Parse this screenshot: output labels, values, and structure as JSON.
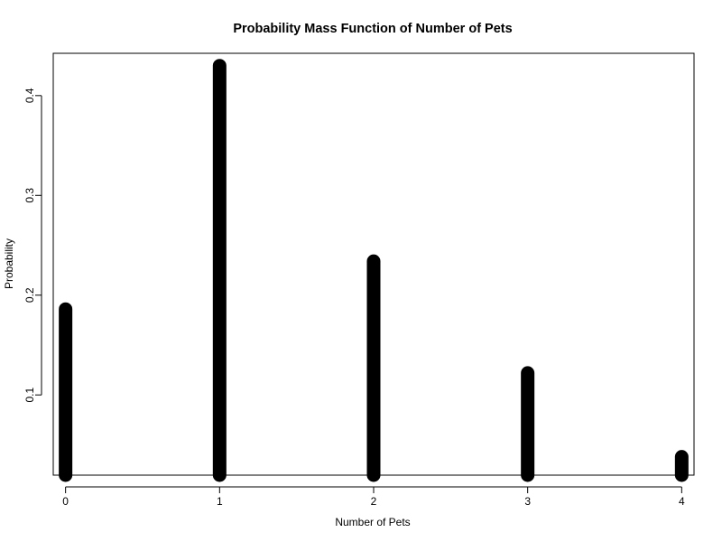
{
  "chart_data": {
    "type": "bar",
    "title": "Probability Mass Function of Number of Pets",
    "xlabel": "Number of Pets",
    "ylabel": "Probability",
    "x": [
      0,
      1,
      2,
      3,
      4
    ],
    "values": [
      0.186,
      0.43,
      0.234,
      0.122,
      0.038
    ],
    "xticks": [
      "0",
      "1",
      "2",
      "3",
      "4"
    ],
    "yticks": [
      "0.1",
      "0.2",
      "0.3",
      "0.4"
    ],
    "xlim": [
      -0.08,
      4.08
    ],
    "ylim": [
      0.0196,
      0.4424
    ],
    "grid": false,
    "color": "#000000"
  }
}
